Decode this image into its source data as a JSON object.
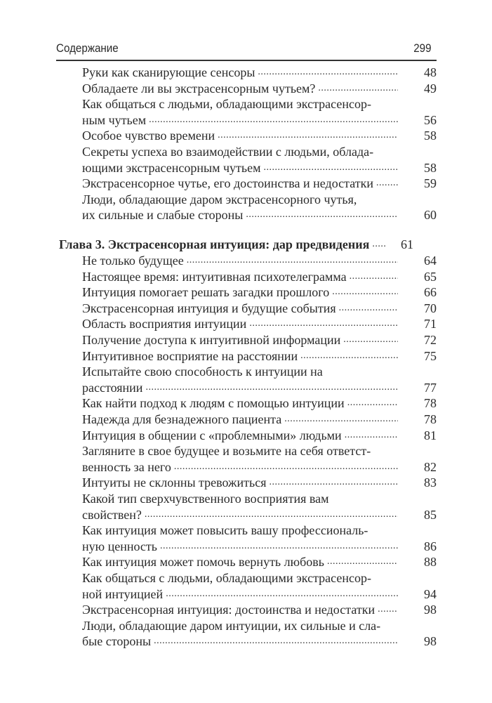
{
  "header": {
    "title": "Содержание",
    "page_number": "299"
  },
  "entries": [
    {
      "lines": [
        "Руки как сканирующие сенсоры"
      ],
      "page": "48"
    },
    {
      "lines": [
        "Обладаете ли вы экстрасенсорным чутьем?"
      ],
      "page": "49"
    },
    {
      "lines": [
        "Как общаться с людьми, обладающими экстрасенсор-",
        "ным чутьем"
      ],
      "page": "56"
    },
    {
      "lines": [
        "Особое чувство времени"
      ],
      "page": "58"
    },
    {
      "lines": [
        "Секреты успеха во взаимодействии с людьми, облада-",
        "ющими экстрасенсорным чутьем"
      ],
      "page": "58"
    },
    {
      "lines": [
        "Экстрасенсорное чутье, его достоинства и недостатки"
      ],
      "page": "59"
    },
    {
      "lines": [
        "Люди, обладающие даром экстрасенсорного чутья,",
        "их сильные и слабые стороны"
      ],
      "page": "60"
    },
    {
      "chapter": true,
      "lines": [
        "Глава 3. Экстрасенсорная интуиция: дар предвидения"
      ],
      "page": "61"
    },
    {
      "lines": [
        "Не только будущее"
      ],
      "page": "64"
    },
    {
      "lines": [
        "Настоящее время: интуитивная психотелеграмма"
      ],
      "page": "65"
    },
    {
      "lines": [
        "Интуиция помогает решать загадки прошлого"
      ],
      "page": "66"
    },
    {
      "lines": [
        "Экстрасенсорная интуиция и будущие события"
      ],
      "page": "70"
    },
    {
      "lines": [
        "Область восприятия интуиции"
      ],
      "page": "71"
    },
    {
      "lines": [
        "Получение доступа к интуитивной информации"
      ],
      "page": "72"
    },
    {
      "lines": [
        "Интуитивное восприятие на расстоянии"
      ],
      "page": "75"
    },
    {
      "lines": [
        "Испытайте свою способность к интуиции на",
        "расстоянии"
      ],
      "page": "77"
    },
    {
      "lines": [
        "Как найти подход к людям с помощью интуиции"
      ],
      "page": "78"
    },
    {
      "lines": [
        "Надежда для безнадежного пациента"
      ],
      "page": "78"
    },
    {
      "lines": [
        "Интуиция в общении с «проблемными» людьми"
      ],
      "page": "81"
    },
    {
      "lines": [
        "Загляните в свое будущее и возьмите на себя ответст-",
        "венность за него"
      ],
      "page": "82"
    },
    {
      "lines": [
        "Интуиты не склонны тревожиться"
      ],
      "page": "83"
    },
    {
      "lines": [
        "Какой тип сверхчувственного восприятия вам",
        "свойствен?"
      ],
      "page": "85"
    },
    {
      "lines": [
        "Как интуиция может повысить вашу профессиональ-",
        "ную ценность"
      ],
      "page": "86"
    },
    {
      "lines": [
        "Как интуиция может помочь вернуть любовь"
      ],
      "page": "88"
    },
    {
      "lines": [
        "Как общаться с людьми, обладающими экстрасенсор-",
        "ной интуицией"
      ],
      "page": "94"
    },
    {
      "lines": [
        "Экстрасенсорная интуиция: достоинства и недостатки"
      ],
      "page": "98"
    },
    {
      "lines": [
        "Люди, обладающие даром интуиции, их сильные и сла-",
        "бые стороны"
      ],
      "page": "98"
    }
  ]
}
